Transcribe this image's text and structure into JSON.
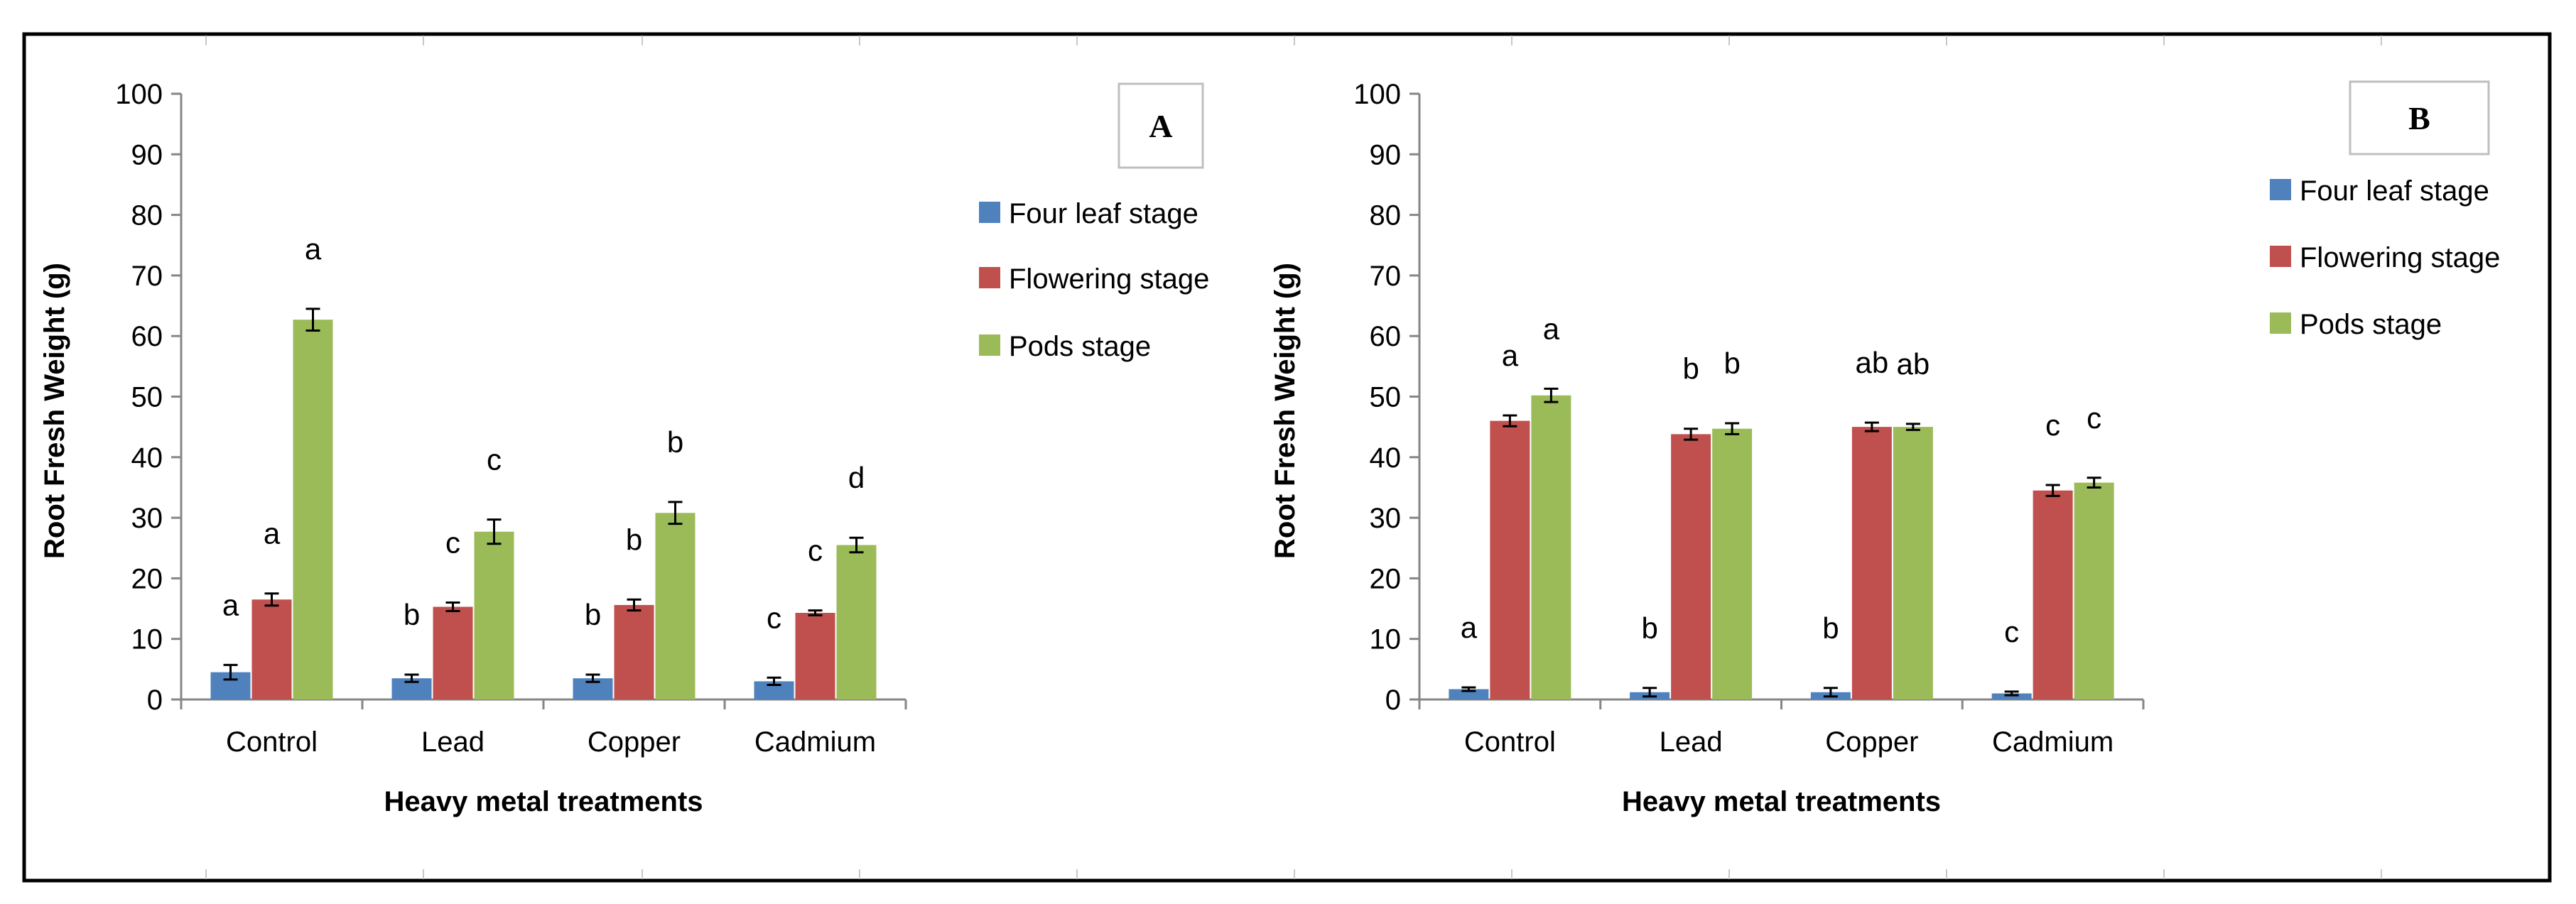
{
  "colors": {
    "four_leaf": "#4f81bd",
    "flowering": "#c0504d",
    "pods": "#9bbb59",
    "axis": "#868686",
    "frame": "#000000"
  },
  "chart_data": [
    {
      "type": "bar",
      "panel_label": "A",
      "xlabel": "Heavy metal treatments",
      "ylabel": "Root Fresh Weight (g)",
      "ylim": [
        0,
        100
      ],
      "ytick_step": 10,
      "categories": [
        "Control",
        "Lead",
        "Copper",
        "Cadmium"
      ],
      "series": [
        {
          "name": "Four leaf stage",
          "color_key": "four_leaf",
          "values": [
            4.5,
            3.5,
            3.5,
            3.0
          ],
          "errors": [
            1.2,
            0.6,
            0.6,
            0.6
          ],
          "letters": [
            "a",
            "b",
            "b",
            "c"
          ]
        },
        {
          "name": "Flowering stage",
          "color_key": "flowering",
          "values": [
            16.5,
            15.3,
            15.6,
            14.3
          ],
          "errors": [
            1.0,
            0.7,
            0.9,
            0.4
          ],
          "letters": [
            "a",
            "c",
            "b",
            "c"
          ]
        },
        {
          "name": "Pods stage",
          "color_key": "pods",
          "values": [
            62.7,
            27.7,
            30.8,
            25.5
          ],
          "errors": [
            1.8,
            2.0,
            1.8,
            1.2
          ],
          "letters": [
            "a",
            "c",
            "b",
            "d"
          ]
        }
      ],
      "legend_position": "right"
    },
    {
      "type": "bar",
      "panel_label": "B",
      "xlabel": "Heavy metal treatments",
      "ylabel": "Root Fresh Weight (g)",
      "ylim": [
        0,
        100
      ],
      "ytick_step": 10,
      "categories": [
        "Control",
        "Lead",
        "Copper",
        "Cadmium"
      ],
      "series": [
        {
          "name": "Four leaf stage",
          "color_key": "four_leaf",
          "values": [
            1.7,
            1.2,
            1.2,
            1.0
          ],
          "errors": [
            0.3,
            0.7,
            0.7,
            0.3
          ],
          "letters": [
            "a",
            "b",
            "b",
            "c"
          ]
        },
        {
          "name": "Flowering stage",
          "color_key": "flowering",
          "values": [
            46.0,
            43.8,
            45.0,
            34.5
          ],
          "errors": [
            0.9,
            0.9,
            0.7,
            0.9
          ],
          "letters": [
            "a",
            "b",
            "ab",
            "c"
          ]
        },
        {
          "name": "Pods stage",
          "color_key": "pods",
          "values": [
            50.2,
            44.7,
            45.0,
            35.8
          ],
          "errors": [
            1.1,
            0.9,
            0.5,
            0.8
          ],
          "letters": [
            "a",
            "b",
            "ab",
            "c"
          ]
        }
      ],
      "legend_position": "right"
    }
  ]
}
